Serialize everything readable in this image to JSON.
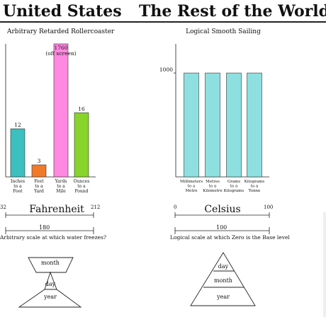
{
  "header": {
    "left_title": "United States",
    "right_title": "The Rest of the World"
  },
  "chart_data": [
    {
      "type": "bar",
      "title": "Arbitrary Retarded Rollercoaster",
      "categories": [
        "Inches\nto a\nFoot",
        "Feet\nto a\nYard",
        "Yards\nto a\nMile",
        "Ounces\nto a\nPound"
      ],
      "values": [
        12,
        3,
        1760,
        16
      ],
      "value_labels": [
        "12",
        "3",
        "1760",
        "16"
      ],
      "colors": [
        "#3bbfbf",
        "#f07a2a",
        "#ff88e0",
        "#88d42a"
      ],
      "annotations": [
        {
          "category": 2,
          "text": "(off screen)"
        }
      ],
      "ylim": [
        0,
        40
      ]
    },
    {
      "type": "bar",
      "title": "Logical Smooth Sailing",
      "categories": [
        "Millimeters\nto a\nMetre",
        "Metres\nto a\nKilometre",
        "Grams\nto a\nKilograms",
        "Kilograms\nto a\nTonne"
      ],
      "values": [
        1000,
        1000,
        1000,
        1000
      ],
      "colors": [
        "#8ee0e0",
        "#8ee0e0",
        "#8ee0e0",
        "#8ee0e0"
      ],
      "yticks": [
        1000
      ],
      "ytick_labels": [
        "1000"
      ],
      "ylim": [
        0,
        1280
      ]
    }
  ],
  "scales": {
    "left": {
      "name": "Fahrenheit",
      "min_label": "32",
      "max_label": "212",
      "span_label": "180",
      "note": "Arbitrary scale at which water freezes?"
    },
    "right": {
      "name": "Celsius",
      "min_label": "0",
      "max_label": "100",
      "span_label": "100",
      "note": "Logical scale at which Zero is the Base level"
    }
  },
  "pyramids": {
    "left": {
      "top": "month",
      "bottom_top": "day",
      "bottom_base": "year"
    },
    "right": {
      "top": "day",
      "middle": "month",
      "base": "year"
    }
  }
}
